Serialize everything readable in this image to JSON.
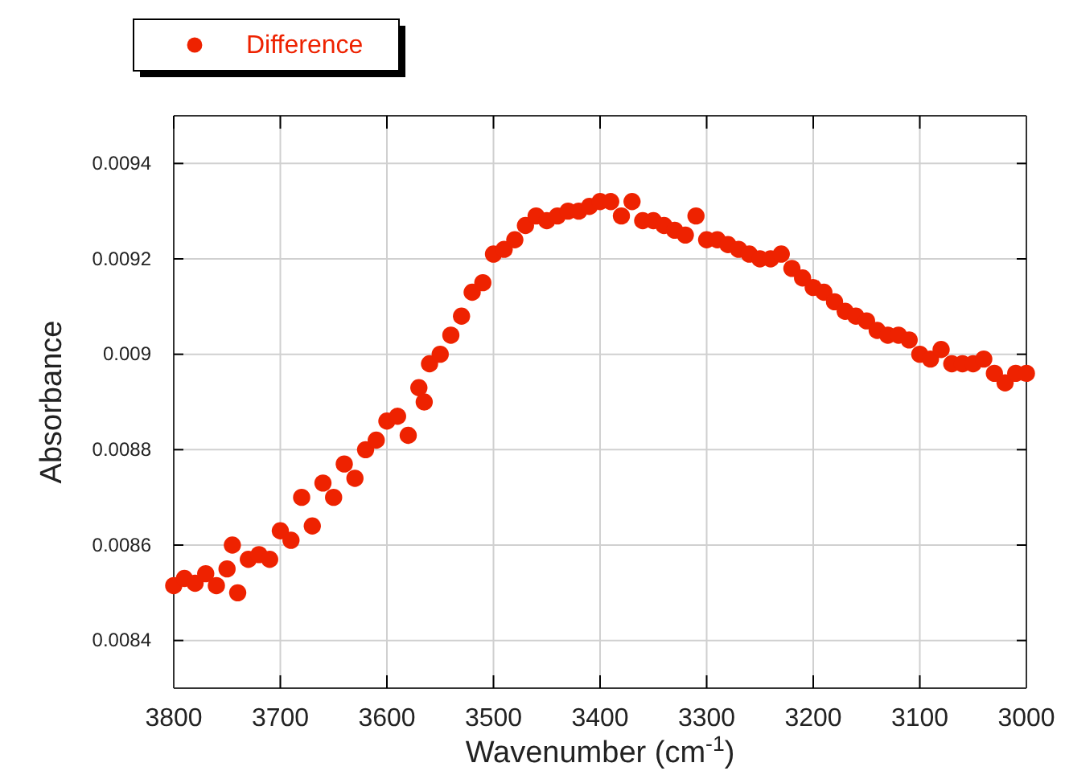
{
  "chart_data": {
    "type": "scatter",
    "xlabel": "Wavenumber (cm$^{-1}$)",
    "ylabel": "Absorbance",
    "x": [
      3800,
      3790,
      3780,
      3770,
      3760,
      3750,
      3745,
      3740,
      3730,
      3720,
      3710,
      3700,
      3690,
      3680,
      3670,
      3660,
      3650,
      3640,
      3630,
      3620,
      3610,
      3600,
      3590,
      3580,
      3570,
      3565,
      3560,
      3550,
      3540,
      3530,
      3520,
      3510,
      3500,
      3490,
      3480,
      3470,
      3460,
      3450,
      3440,
      3430,
      3420,
      3410,
      3400,
      3390,
      3380,
      3370,
      3360,
      3350,
      3340,
      3330,
      3320,
      3310,
      3300,
      3290,
      3280,
      3270,
      3260,
      3250,
      3240,
      3230,
      3220,
      3210,
      3200,
      3190,
      3180,
      3170,
      3160,
      3150,
      3140,
      3130,
      3120,
      3110,
      3100,
      3090,
      3080,
      3070,
      3060,
      3050,
      3040,
      3030,
      3020,
      3010,
      3000
    ],
    "series": [
      {
        "name": "Difference",
        "color": "#ee2200",
        "values": [
          0.008515,
          0.00853,
          0.00852,
          0.00854,
          0.008515,
          0.00855,
          0.0086,
          0.0085,
          0.00857,
          0.00858,
          0.00857,
          0.00863,
          0.00861,
          0.0087,
          0.00864,
          0.00873,
          0.0087,
          0.00877,
          0.00874,
          0.0088,
          0.00882,
          0.00886,
          0.00887,
          0.00883,
          0.00893,
          0.0089,
          0.00898,
          0.009,
          0.00904,
          0.00908,
          0.00913,
          0.00915,
          0.00921,
          0.00922,
          0.00924,
          0.00927,
          0.00929,
          0.00928,
          0.00929,
          0.0093,
          0.0093,
          0.00931,
          0.00932,
          0.00932,
          0.00929,
          0.00932,
          0.00928,
          0.00928,
          0.00927,
          0.00926,
          0.00925,
          0.00929,
          0.00924,
          0.00924,
          0.00923,
          0.00922,
          0.00921,
          0.0092,
          0.0092,
          0.00921,
          0.00918,
          0.00916,
          0.00914,
          0.00913,
          0.00911,
          0.00909,
          0.00908,
          0.00907,
          0.00905,
          0.00904,
          0.00904,
          0.00903,
          0.009,
          0.00899,
          0.00901,
          0.00898,
          0.00898,
          0.00898,
          0.00899,
          0.00896,
          0.00894,
          0.00896,
          0.00896
        ]
      }
    ],
    "xlim": [
      3800,
      3000
    ],
    "xticks": [
      3800,
      3700,
      3600,
      3500,
      3400,
      3300,
      3200,
      3100,
      3000
    ],
    "ylim": [
      0.0083,
      0.0095
    ],
    "yticks": [
      0.0084,
      0.0086,
      0.0088,
      0.009,
      0.0092,
      0.0094
    ],
    "grid": true,
    "legend": "top left",
    "marker": "circle"
  }
}
